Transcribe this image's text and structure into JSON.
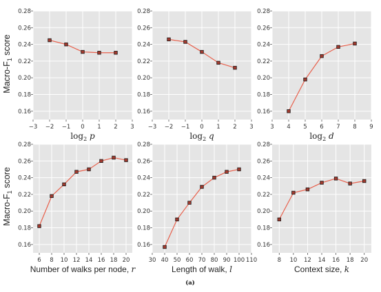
{
  "style": {
    "panel_bg": "#e5e5e5",
    "grid": "#ffffff",
    "line": "#e8604c",
    "marker_fill": "#a43a2e",
    "marker_edge": "#1a1a1a"
  },
  "ylabel": "Macro-F$_1$ score",
  "caption": "(a)",
  "chart_data": [
    {
      "type": "line",
      "xlabel_parts": [
        "log",
        "2",
        " p"
      ],
      "x": [
        -2,
        -1,
        0,
        1,
        2
      ],
      "values": [
        0.245,
        0.24,
        0.231,
        0.23,
        0.23
      ],
      "xlim": [
        -3,
        3
      ],
      "ylim": [
        0.15,
        0.28
      ],
      "xticks": [
        "−3",
        "−2",
        "−1",
        "0",
        "1",
        "2",
        "3"
      ],
      "yticks": [
        "0.16",
        "0.18",
        "0.20",
        "0.22",
        "0.24",
        "0.26",
        "0.28"
      ],
      "grid": true
    },
    {
      "type": "line",
      "xlabel_parts": [
        "log",
        "2",
        " q"
      ],
      "x": [
        -2,
        -1,
        0,
        1,
        2
      ],
      "values": [
        0.246,
        0.243,
        0.231,
        0.218,
        0.212
      ],
      "xlim": [
        -3,
        3
      ],
      "ylim": [
        0.15,
        0.28
      ],
      "xticks": [
        "−3",
        "−2",
        "−1",
        "0",
        "1",
        "2",
        "3"
      ],
      "yticks": [
        "0.16",
        "0.18",
        "0.20",
        "0.22",
        "0.24",
        "0.26",
        "0.28"
      ],
      "grid": true
    },
    {
      "type": "line",
      "xlabel_parts": [
        "log",
        "2",
        " d"
      ],
      "x": [
        4,
        5,
        6,
        7,
        8
      ],
      "values": [
        0.16,
        0.198,
        0.226,
        0.237,
        0.241
      ],
      "xlim": [
        3,
        9
      ],
      "ylim": [
        0.15,
        0.28
      ],
      "xticks": [
        "3",
        "4",
        "5",
        "6",
        "7",
        "8",
        "9"
      ],
      "yticks": [
        "0.16",
        "0.18",
        "0.20",
        "0.22",
        "0.24",
        "0.26",
        "0.28"
      ],
      "grid": true
    },
    {
      "type": "line",
      "xlabel_parts": [
        "Number of walks per node, ",
        "",
        "r"
      ],
      "x": [
        6,
        8,
        10,
        12,
        14,
        16,
        18,
        20
      ],
      "values": [
        0.182,
        0.218,
        0.232,
        0.247,
        0.25,
        0.26,
        0.264,
        0.261
      ],
      "xlim": [
        5,
        21
      ],
      "ylim": [
        0.15,
        0.28
      ],
      "xticks": [
        "6",
        "8",
        "10",
        "12",
        "14",
        "16",
        "18",
        "20"
      ],
      "yticks": [
        "0.16",
        "0.18",
        "0.20",
        "0.22",
        "0.24",
        "0.26",
        "0.28"
      ],
      "grid": true
    },
    {
      "type": "line",
      "xlabel_parts": [
        "Length of walk, ",
        "",
        "l"
      ],
      "x": [
        40,
        50,
        60,
        70,
        80,
        90,
        100
      ],
      "values": [
        0.157,
        0.19,
        0.21,
        0.229,
        0.24,
        0.247,
        0.25
      ],
      "xlim": [
        30,
        110
      ],
      "ylim": [
        0.15,
        0.28
      ],
      "xticks": [
        "30",
        "40",
        "50",
        "60",
        "70",
        "80",
        "90",
        "100",
        "110"
      ],
      "yticks": [
        "0.16",
        "0.18",
        "0.20",
        "0.22",
        "0.24",
        "0.26",
        "0.28"
      ],
      "grid": true
    },
    {
      "type": "line",
      "xlabel_parts": [
        "Context size, ",
        "",
        "k"
      ],
      "x": [
        8,
        10,
        12,
        14,
        16,
        18,
        20
      ],
      "values": [
        0.19,
        0.222,
        0.226,
        0.234,
        0.239,
        0.233,
        0.236
      ],
      "xlim": [
        7,
        21
      ],
      "ylim": [
        0.15,
        0.28
      ],
      "xticks": [
        "8",
        "10",
        "12",
        "14",
        "16",
        "18",
        "20"
      ],
      "yticks": [
        "0.16",
        "0.18",
        "0.20",
        "0.22",
        "0.24",
        "0.26",
        "0.28"
      ],
      "grid": true
    }
  ]
}
